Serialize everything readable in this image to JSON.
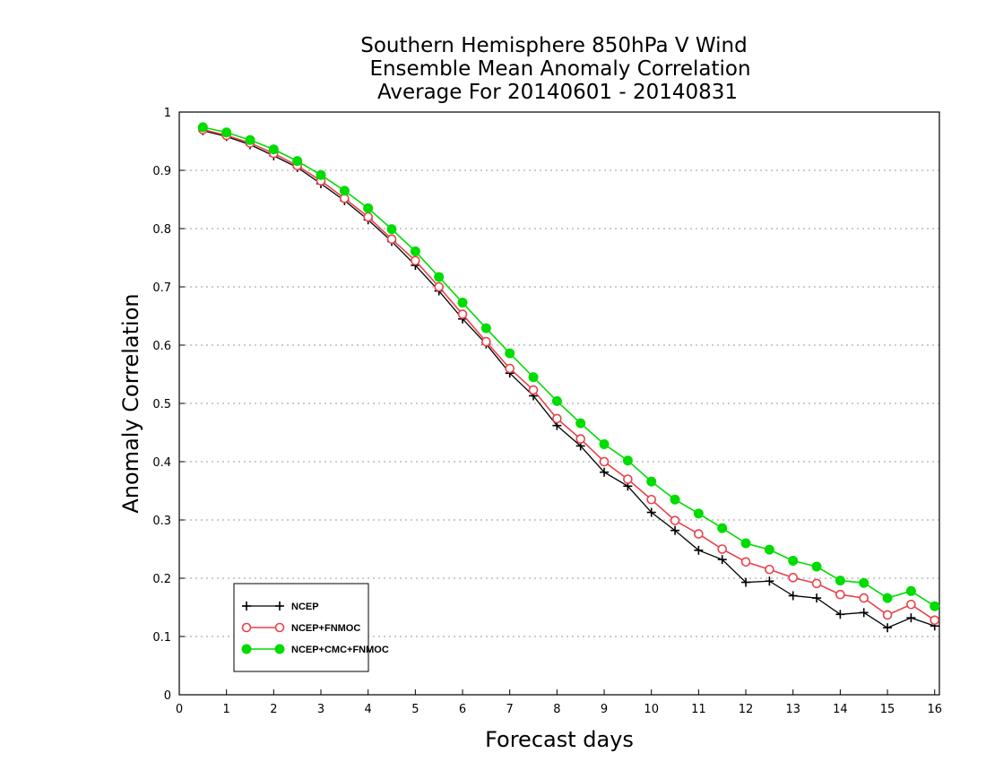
{
  "chart_data": {
    "type": "line",
    "title": [
      "Southern Hemisphere 850hPa V Wind",
      "Ensemble Mean Anomaly Correlation",
      "Average For 20140601 - 20140831"
    ],
    "xlabel": "Forecast days",
    "ylabel": "Anomaly Correlation",
    "xlim": [
      0,
      16.1
    ],
    "ylim": [
      0,
      1
    ],
    "xticks": [
      0,
      1,
      2,
      3,
      4,
      5,
      6,
      7,
      8,
      9,
      10,
      11,
      12,
      13,
      14,
      15,
      16
    ],
    "xtick_labels": [
      "0",
      "1",
      "2",
      "3",
      "4",
      "5",
      "6",
      "7",
      "8",
      "9",
      "10",
      "11",
      "12",
      "13",
      "14",
      "15",
      "16"
    ],
    "yticks": [
      0,
      0.1,
      0.2,
      0.3,
      0.4,
      0.5,
      0.6,
      0.7,
      0.8,
      0.9,
      1
    ],
    "ytick_labels": [
      "0",
      "0.1",
      "0.2",
      "0.3",
      "0.4",
      "0.5",
      "0.6",
      "0.7",
      "0.8",
      "0.9",
      "1"
    ],
    "grid": "horizontal dotted",
    "legend_position": "bottom-left",
    "x": [
      0.5,
      1,
      1.5,
      2,
      2.5,
      3,
      3.5,
      4,
      4.5,
      5,
      5.5,
      6,
      6.5,
      7,
      7.5,
      8,
      8.5,
      9,
      9.5,
      10,
      10.5,
      11,
      11.5,
      12,
      12.5,
      13,
      13.5,
      14,
      14.5,
      15,
      15.5,
      16
    ],
    "series": [
      {
        "name": "NCEP",
        "color": "#000000",
        "marker": "plus",
        "values": [
          0.968,
          0.958,
          0.944,
          0.925,
          0.905,
          0.877,
          0.848,
          0.815,
          0.778,
          0.737,
          0.693,
          0.645,
          0.602,
          0.552,
          0.513,
          0.462,
          0.427,
          0.382,
          0.358,
          0.313,
          0.282,
          0.248,
          0.232,
          0.193,
          0.195,
          0.17,
          0.166,
          0.138,
          0.141,
          0.115,
          0.132,
          0.118
        ]
      },
      {
        "name": "NCEP+FNMOC",
        "color": "#e8424a",
        "marker": "open-circle",
        "values": [
          0.97,
          0.96,
          0.947,
          0.929,
          0.908,
          0.882,
          0.852,
          0.82,
          0.782,
          0.745,
          0.7,
          0.653,
          0.606,
          0.56,
          0.523,
          0.474,
          0.439,
          0.4,
          0.37,
          0.335,
          0.299,
          0.276,
          0.25,
          0.228,
          0.215,
          0.201,
          0.191,
          0.172,
          0.166,
          0.137,
          0.155,
          0.128
        ]
      },
      {
        "name": "NCEP+CMC+FNMOC",
        "color": "#00dc00",
        "marker": "filled-circle",
        "values": [
          0.974,
          0.965,
          0.952,
          0.936,
          0.916,
          0.892,
          0.865,
          0.835,
          0.799,
          0.761,
          0.717,
          0.673,
          0.629,
          0.586,
          0.545,
          0.504,
          0.466,
          0.43,
          0.402,
          0.366,
          0.335,
          0.311,
          0.286,
          0.26,
          0.249,
          0.23,
          0.22,
          0.196,
          0.192,
          0.166,
          0.178,
          0.152
        ]
      }
    ]
  }
}
